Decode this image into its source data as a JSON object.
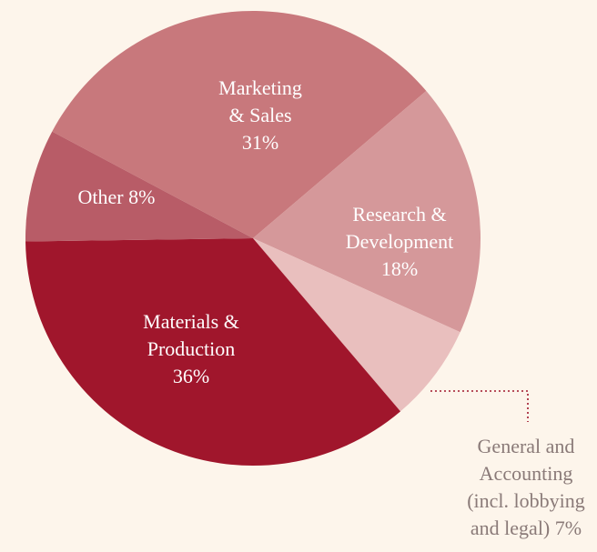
{
  "chart_data": {
    "type": "pie",
    "title": "",
    "slices": [
      {
        "name": "Marketing & Sales",
        "label_lines": [
          "Marketing",
          "& Sales",
          "31%"
        ],
        "value": 31,
        "color": "#c8787c"
      },
      {
        "name": "Research & Development",
        "label_lines": [
          "Research &",
          "Development",
          "18%"
        ],
        "value": 18,
        "color": "#d5989a"
      },
      {
        "name": "General and Accounting (incl. lobbying and legal)",
        "label_lines": [
          "General and",
          "Accounting",
          "(incl. lobbying",
          "and legal) 7%"
        ],
        "value": 7,
        "color": "#e9bfbe"
      },
      {
        "name": "Materials & Production",
        "label_lines": [
          "Materials &",
          "Production",
          "36%"
        ],
        "value": 36,
        "color": "#a0162c"
      },
      {
        "name": "Other",
        "label_lines": [
          "Other  8%"
        ],
        "value": 8,
        "color": "#b85c67"
      }
    ],
    "colors": {
      "background": "#fdf5eb",
      "leader_line": "#a0162c",
      "outside_label": "#8a7a78"
    }
  }
}
